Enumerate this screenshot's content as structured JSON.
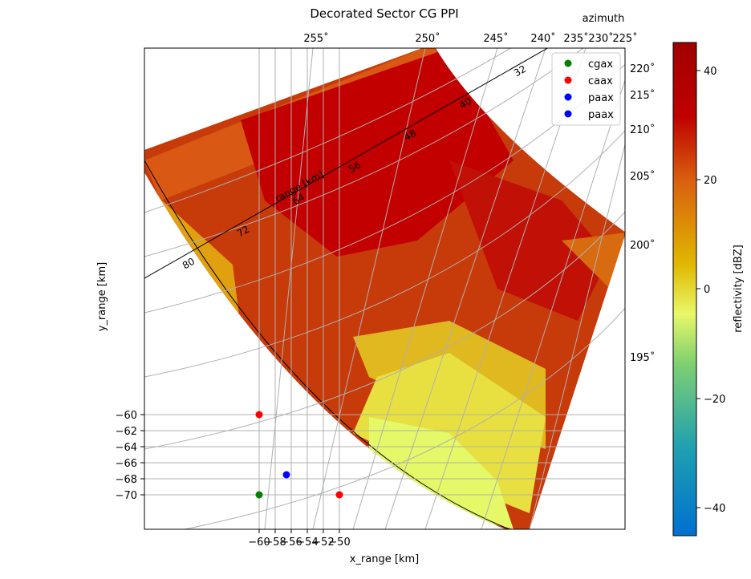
{
  "chart_data": {
    "type": "heatmap",
    "title": "Decorated Sector CG PPI",
    "xlabel": "x_range [km]",
    "ylabel": "y_range [km]",
    "top_axis_label": "azimuth",
    "colorbar_label": "reflectivity [dBZ]",
    "range_axis_label": "range [km]",
    "x_ticks": [
      -60,
      -58,
      -56,
      -54,
      -52,
      -50
    ],
    "y_ticks": [
      -60,
      -62,
      -64,
      -66,
      -68,
      -70
    ],
    "x_tick_labels": [
      "−60",
      "−58",
      "−56",
      "−54",
      "−52",
      "−50"
    ],
    "y_tick_labels": [
      "−60",
      "−62",
      "−64",
      "−66",
      "−68",
      "−70"
    ],
    "azimuth_top_labels": [
      "255˚",
      "250˚",
      "245˚",
      "240˚",
      "235˚",
      "230˚",
      "225˚"
    ],
    "azimuth_right_labels": [
      "220˚",
      "215˚",
      "210˚",
      "205˚",
      "200˚",
      "195˚"
    ],
    "range_ticks": [
      "32",
      "40",
      "48",
      "56",
      "64",
      "72",
      "80"
    ],
    "colorbar": {
      "vmin": -45,
      "vmax": 45,
      "ticks": [
        40,
        20,
        0,
        -20,
        -40
      ],
      "tick_labels": [
        "40",
        "20",
        "0",
        "−20",
        "−40"
      ]
    },
    "grid": true,
    "legend_position": "top-right",
    "markers": [
      {
        "name": "cgax",
        "x": -60,
        "y": -70,
        "color": "#008000"
      },
      {
        "name": "caax",
        "x": -60,
        "y": -60,
        "color": "#ff0000"
      },
      {
        "name": "caax",
        "x": -50,
        "y": -70,
        "color": "#ff0000"
      },
      {
        "name": "paax",
        "x": -56.7,
        "y": -67.5,
        "color": "#0000ff"
      }
    ],
    "legend": [
      {
        "name": "cgax",
        "color": "#008000"
      },
      {
        "name": "caax",
        "color": "#ff0000"
      },
      {
        "name": "paax",
        "color": "#0000ff"
      },
      {
        "name": "paax",
        "color": "#0000ff"
      }
    ]
  }
}
